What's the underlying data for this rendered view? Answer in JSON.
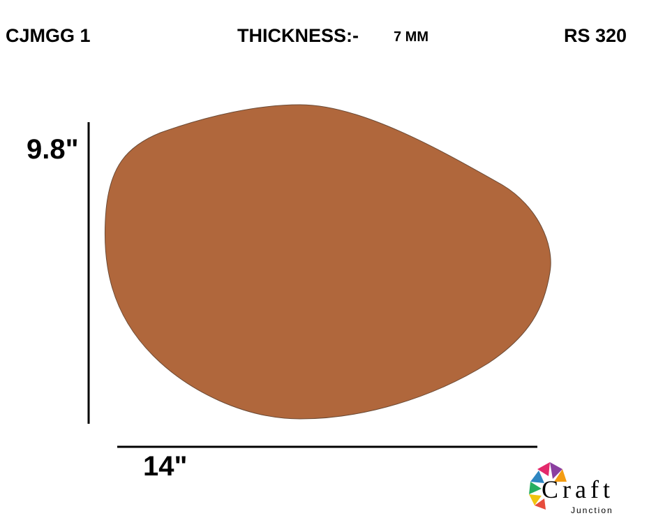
{
  "header": {
    "code": "CJMGG 1",
    "thickness_label": "THICKNESS:-",
    "thickness_value": "7 MM",
    "price": "RS 320"
  },
  "dimensions": {
    "height": "9.8\"",
    "width": "14\""
  },
  "logo": {
    "name": "Craft",
    "tagline": "Junction"
  }
}
